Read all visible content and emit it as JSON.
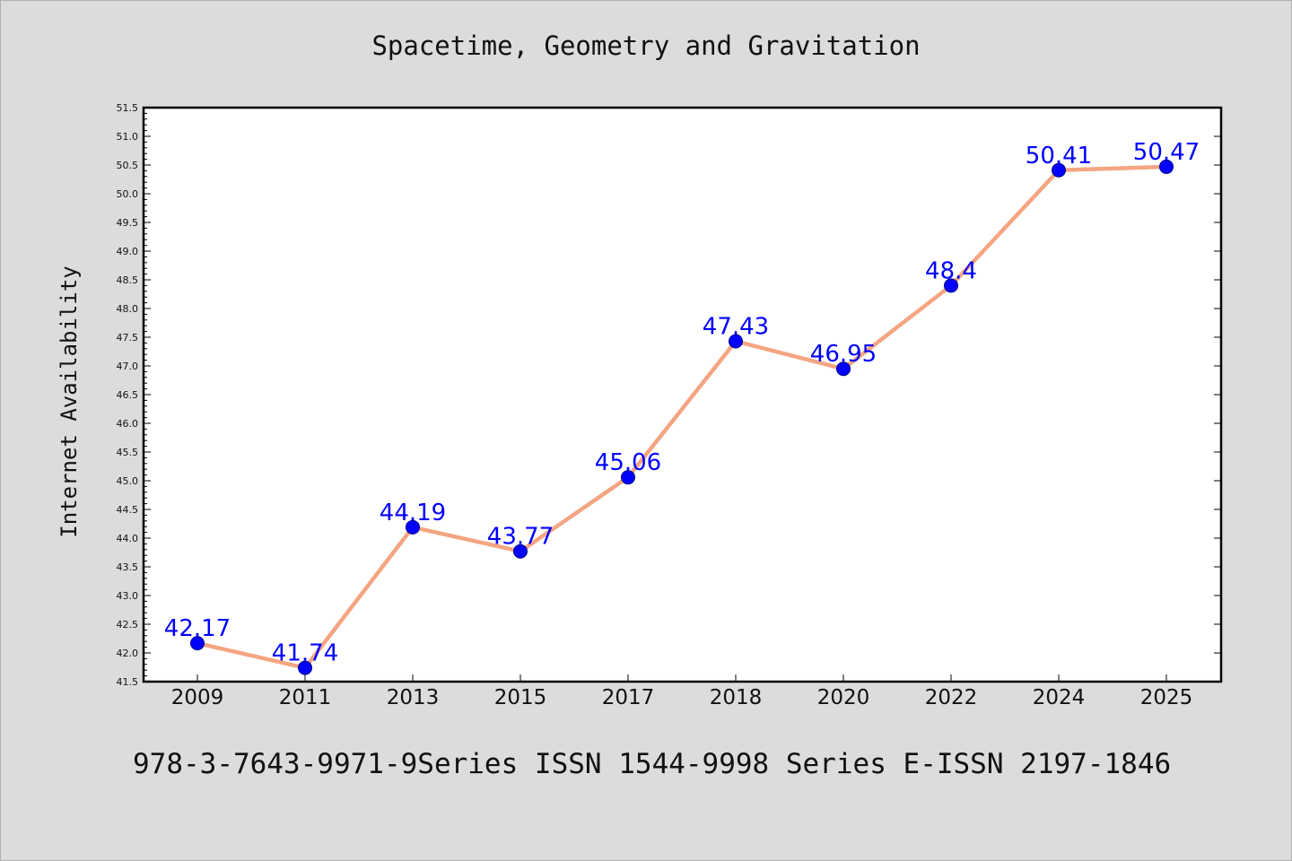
{
  "title": "Spacetime, Geometry and Gravitation",
  "footer": "978-3-7643-9971-9Series ISSN 1544-9998 Series E-ISSN 2197-1846",
  "colors": {
    "background": "#dcdcdc",
    "plot_background": "#ffffff",
    "line": "#f4a582",
    "marker": "#0000ff",
    "label": "#0000ff"
  },
  "chart_data": {
    "type": "line",
    "title": "Spacetime, Geometry and Gravitation",
    "xlabel": "",
    "ylabel": "Internet Availability",
    "categories": [
      "2009",
      "2011",
      "2013",
      "2015",
      "2017",
      "2018",
      "2020",
      "2022",
      "2024",
      "2025"
    ],
    "values": [
      42.17,
      41.74,
      44.19,
      43.77,
      45.06,
      47.43,
      46.95,
      48.4,
      50.41,
      50.47
    ],
    "data_labels": [
      "42.17",
      "41.74",
      "44.19",
      "43.77",
      "45.06",
      "47.43",
      "46.95",
      "48.4",
      "50.41",
      "50.47"
    ],
    "ylim": [
      41.5,
      51.5
    ],
    "yticks": [
      "41.5",
      "42.0",
      "42.5",
      "43.0",
      "43.5",
      "44.0",
      "44.5",
      "45.0",
      "45.5",
      "46.0",
      "46.5",
      "47.0",
      "47.5",
      "48.0",
      "48.5",
      "49.0",
      "49.5",
      "50.0",
      "50.5",
      "51.0",
      "51.5"
    ],
    "grid": false,
    "legend": "none",
    "marker": "circle"
  }
}
